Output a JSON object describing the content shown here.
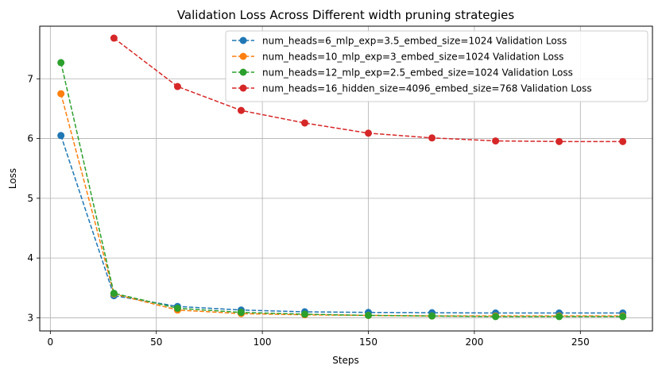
{
  "chart_data": {
    "type": "line",
    "title": "Validation Loss Across Different width pruning strategies",
    "xlabel": "Steps",
    "ylabel": "Loss",
    "xlim": [
      -5,
      284
    ],
    "ylim": [
      2.78,
      7.88
    ],
    "xticks": [
      0,
      50,
      100,
      150,
      200,
      250
    ],
    "yticks": [
      3,
      4,
      5,
      6,
      7
    ],
    "grid": true,
    "legend_position": "top-right",
    "line_style": "dashed",
    "marker": "circle",
    "series": [
      {
        "name": "num_heads=6_mlp_exp=3.5_embed_size=1024 Validation Loss",
        "color": "#1f77b4",
        "x": [
          5,
          30,
          60,
          90,
          120,
          150,
          180,
          210,
          240,
          270
        ],
        "y": [
          6.05,
          3.37,
          3.19,
          3.13,
          3.1,
          3.09,
          3.085,
          3.08,
          3.08,
          3.08
        ]
      },
      {
        "name": "num_heads=10_mlp_exp=3_embed_size=1024 Validation Loss",
        "color": "#ff7f0e",
        "x": [
          5,
          30,
          60,
          90,
          120,
          150,
          180,
          210,
          240,
          270
        ],
        "y": [
          6.75,
          3.4,
          3.13,
          3.07,
          3.05,
          3.04,
          3.03,
          3.03,
          3.03,
          3.03
        ]
      },
      {
        "name": "num_heads=12_mlp_exp=2.5_embed_size=1024 Validation Loss",
        "color": "#2ca02c",
        "x": [
          5,
          30,
          60,
          90,
          120,
          150,
          180,
          210,
          240,
          270
        ],
        "y": [
          7.27,
          3.41,
          3.16,
          3.09,
          3.06,
          3.04,
          3.03,
          3.02,
          3.02,
          3.02
        ]
      },
      {
        "name": "num_heads=16_hidden_size=4096_embed_size=768 Validation Loss",
        "color": "#d62728",
        "x": [
          30,
          60,
          90,
          120,
          150,
          180,
          210,
          240,
          270
        ],
        "y": [
          7.68,
          6.87,
          6.47,
          6.26,
          6.09,
          6.01,
          5.96,
          5.95,
          5.95
        ]
      }
    ]
  }
}
